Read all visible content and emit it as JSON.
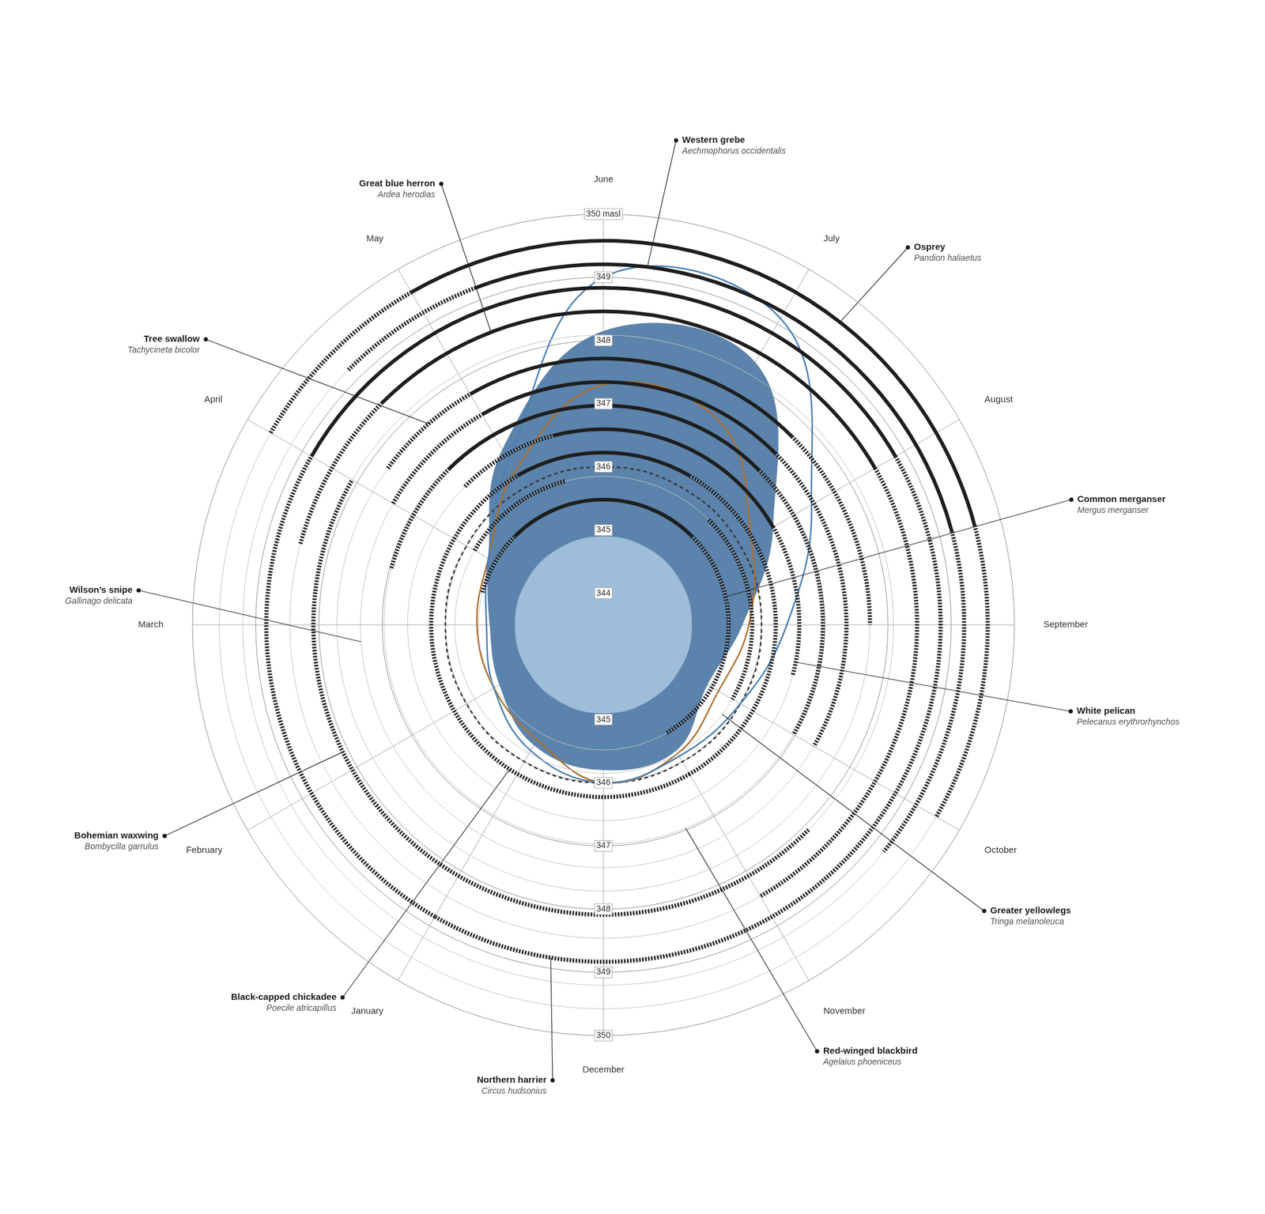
{
  "chart_data": {
    "type": "radar",
    "categories": [
      "June",
      "July",
      "August",
      "September",
      "October",
      "November",
      "December",
      "January",
      "February",
      "March",
      "April",
      "May"
    ],
    "ylim": [
      343.5,
      350
    ],
    "yticks": [
      344,
      345,
      346,
      347,
      348,
      349,
      {
        "value": 350,
        "label": "350 masl"
      }
    ],
    "grid": true,
    "series": [
      {
        "type": "area",
        "color": "#5b83ab",
        "values": [
          348.15,
          348.3,
          346.6,
          345.7,
          345.4,
          345.8,
          345.8,
          345.7,
          345.4,
          345.3,
          345.6,
          346.7
        ]
      },
      {
        "type": "area",
        "color": "#9dbdd8",
        "values": [
          344.9,
          344.9,
          344.9,
          344.9,
          344.9,
          344.9,
          344.9,
          344.9,
          344.9,
          344.9,
          344.9,
          344.9
        ]
      },
      {
        "type": "line",
        "color": "#4a7fb3",
        "values": [
          349.0,
          349.1,
          347.3,
          346.4,
          346.0,
          345.9,
          346.0,
          345.8,
          345.5,
          345.35,
          345.6,
          346.5
        ]
      },
      {
        "type": "line",
        "color": "#b0702e",
        "values": [
          347.3,
          347.2,
          346.2,
          345.8,
          345.6,
          345.85,
          346.0,
          345.6,
          345.5,
          345.5,
          345.6,
          346.3
        ]
      },
      {
        "type": "line",
        "color": "#333333",
        "line_style": "dashed",
        "values": [
          346.0,
          346.0,
          346.0,
          346.0,
          346.0,
          346.0,
          346.0,
          346.0,
          346.0,
          346.0,
          346.0,
          346.0
        ]
      }
    ],
    "species": [
      {
        "name": "Osprey",
        "latin": "Pandion haliaetus",
        "presence": [
          {
            "from": -2,
            "to": -1,
            "line_style": "dashed"
          },
          {
            "from": -1,
            "to": 2.5,
            "line_style": "solid"
          },
          {
            "from": 2.5,
            "to": 4,
            "line_style": "dashed"
          }
        ]
      },
      {
        "name": "Western grebe",
        "latin": "Aechmophorus occidentalis",
        "presence": [
          {
            "from": -1.5,
            "to": -0.7,
            "line_style": "dashed"
          },
          {
            "from": -0.7,
            "to": 2.5,
            "line_style": "solid"
          },
          {
            "from": 2.5,
            "to": 4.3,
            "line_style": "dashed"
          }
        ]
      },
      {
        "name": "Northern harrier",
        "latin": "Circus hudsonius",
        "presence": [
          {
            "from": -5,
            "to": -2,
            "line_style": "dashed"
          },
          {
            "from": -2,
            "to": 2,
            "line_style": "solid"
          },
          {
            "from": 2,
            "to": 7,
            "line_style": "dashed"
          }
        ]
      },
      {
        "name": "Great blue herron",
        "latin": "Ardea herodias",
        "presence": [
          {
            "from": -2.5,
            "to": -1.5,
            "line_style": "dashed"
          },
          {
            "from": -1.5,
            "to": 2,
            "line_style": "solid"
          },
          {
            "from": 2,
            "to": 5,
            "line_style": "dashed"
          }
        ]
      },
      {
        "name": "Bohemian waxwing",
        "latin": "Bombycilla garrulus",
        "presence": [
          {
            "from": 4.5,
            "to": 10,
            "line_style": "dashed"
          }
        ]
      },
      {
        "name": "Tree swallow",
        "latin": "Tachycineta bicolor",
        "presence": [
          {
            "from": -1.8,
            "to": -1,
            "line_style": "dashed"
          },
          {
            "from": -1,
            "to": 1.5,
            "line_style": "solid"
          },
          {
            "from": 1.5,
            "to": 3,
            "line_style": "dashed"
          }
        ]
      },
      {
        "name": "Wilson’s snipe",
        "latin": "Gallinago delicata",
        "presence": [
          {
            "from": -2,
            "to": -1,
            "line_style": "dashed"
          },
          {
            "from": -1,
            "to": 1.5,
            "line_style": "solid"
          },
          {
            "from": 1.5,
            "to": 4,
            "line_style": "dashed"
          }
        ]
      },
      {
        "name": "Red-winged blackbird",
        "latin": "Agelaius phoeniceus",
        "presence": [
          {
            "from": -2.5,
            "to": -1.5,
            "line_style": "dashed"
          },
          {
            "from": -1.5,
            "to": 1.5,
            "line_style": "solid"
          },
          {
            "from": 1.5,
            "to": 4,
            "line_style": "dashed"
          }
        ]
      },
      {
        "name": "White pelican",
        "latin": "Pelecanus erythrorhynchos",
        "presence": [
          {
            "from": -1.5,
            "to": -0.5,
            "line_style": "dashed"
          },
          {
            "from": -0.5,
            "to": 2,
            "line_style": "solid"
          },
          {
            "from": 2,
            "to": 3.5,
            "line_style": "dashed"
          }
        ]
      },
      {
        "name": "Black-capped chickadee",
        "latin": "Poecile atricapillus",
        "presence": [
          {
            "from": -7,
            "to": -1,
            "line_style": "dashed"
          },
          {
            "from": -1,
            "to": 1,
            "line_style": "solid"
          },
          {
            "from": 1,
            "to": 5,
            "line_style": "dashed"
          }
        ]
      },
      {
        "name": "Greater yellowlegs",
        "latin": "Tringa melanoleuca",
        "presence": [
          {
            "from": -2,
            "to": -0.5,
            "line_style": "dashed"
          },
          {
            "from": 1.5,
            "to": 4,
            "line_style": "dashed"
          }
        ]
      },
      {
        "name": "Common merganser",
        "latin": "Mergus merganser",
        "presence": [
          {
            "from": -2.5,
            "to": -1.5,
            "line_style": "dashed"
          },
          {
            "from": -1.5,
            "to": 1.5,
            "line_style": "solid"
          },
          {
            "from": 1.5,
            "to": 5,
            "line_style": "dashed"
          }
        ]
      }
    ]
  }
}
